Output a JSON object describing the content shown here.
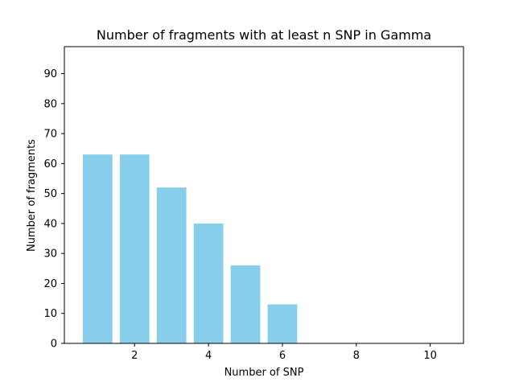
{
  "chart_data": {
    "type": "bar",
    "title": "Number of fragments with at least n SNP in Gamma",
    "xlabel": "Number of SNP",
    "ylabel": "Number of fragments",
    "x": [
      1,
      2,
      3,
      4,
      5,
      6,
      7,
      8,
      9,
      10
    ],
    "values": [
      63,
      63,
      52,
      40,
      26,
      13,
      0,
      0,
      0,
      0
    ],
    "xlim": [
      0.1,
      10.9
    ],
    "ylim": [
      0,
      99
    ],
    "xticks": [
      2,
      4,
      6,
      8,
      10
    ],
    "yticks": [
      0,
      10,
      20,
      30,
      40,
      50,
      60,
      70,
      80,
      90
    ],
    "bar_color": "#87ceeb",
    "grid": false,
    "legend": "none"
  }
}
